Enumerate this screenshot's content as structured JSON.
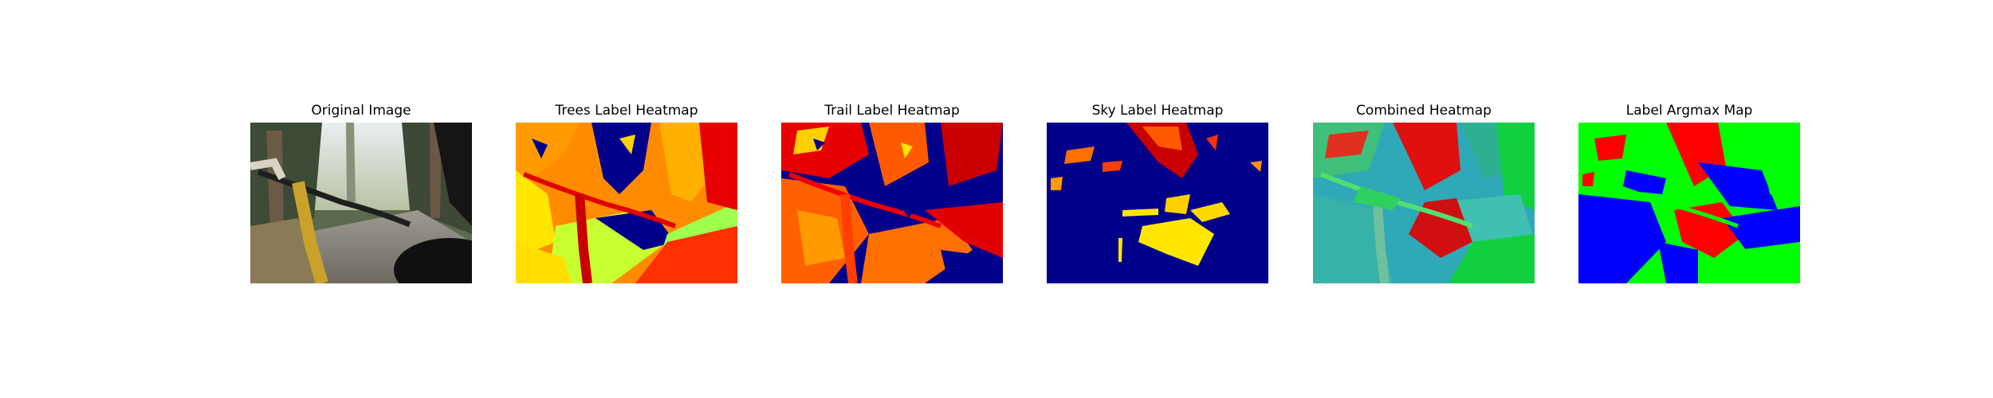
{
  "figure": {
    "panels": [
      {
        "id": "original",
        "title": "Original Image",
        "kind": "photo"
      },
      {
        "id": "trees",
        "title": "Trees Label Heatmap",
        "kind": "heatmap",
        "colormap": "jet"
      },
      {
        "id": "trail",
        "title": "Trail Label Heatmap",
        "kind": "heatmap",
        "colormap": "jet"
      },
      {
        "id": "sky",
        "title": "Sky Label Heatmap",
        "kind": "heatmap",
        "colormap": "jet"
      },
      {
        "id": "combined",
        "title": "Combined Heatmap",
        "kind": "rgb-composite"
      },
      {
        "id": "argmax",
        "title": "Label Argmax Map",
        "kind": "segmentation"
      }
    ]
  },
  "colors": {
    "jet_dark_blue": "#00008b",
    "jet_red": "#e00000",
    "jet_orange": "#ff8c00",
    "jet_yellow": "#ffe600",
    "jet_green": "#9fff4f",
    "argmax_red": "#ff0000",
    "argmax_green": "#00ff00",
    "argmax_blue": "#0000ff",
    "combined_teal": "#2fa8b8"
  }
}
